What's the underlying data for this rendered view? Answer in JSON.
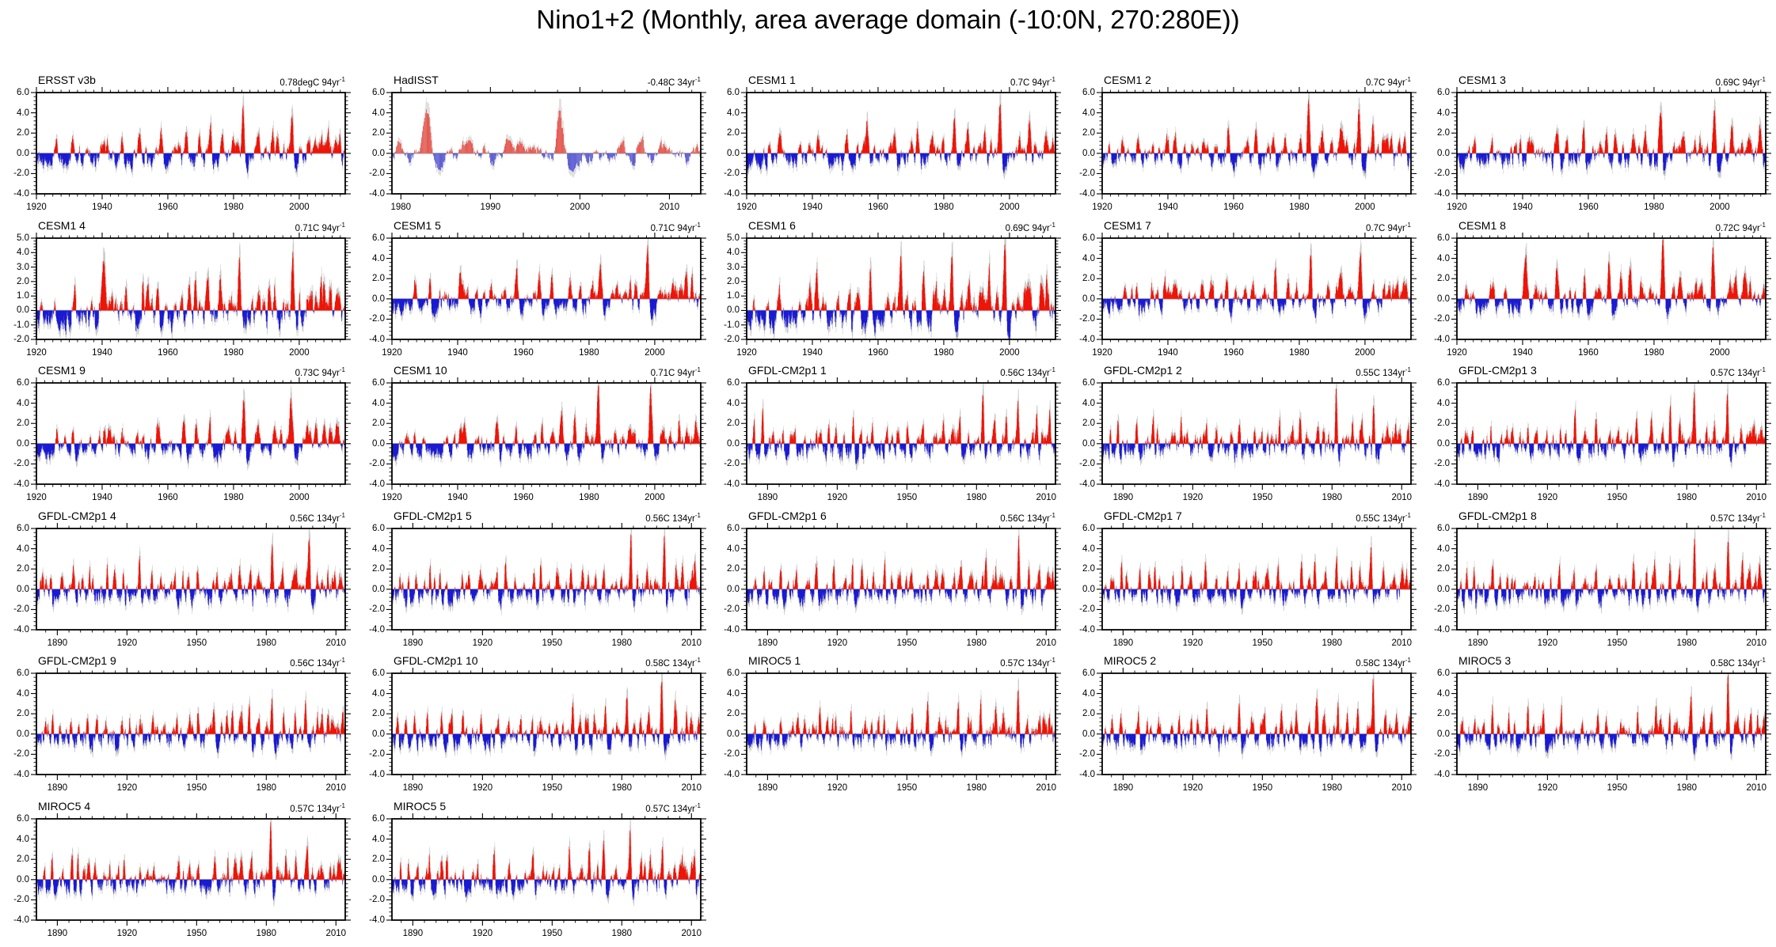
{
  "title": "Nino1+2 (Monthly, area average domain (-10:0N, 270:280E))",
  "colors": {
    "positive": "#ee1407",
    "negative": "#1a1ad2",
    "shadow": "#c9c9c9",
    "zero_line": "#b4b4b4",
    "frame": "#000000",
    "background": "#ffffff"
  },
  "chart_data": {
    "type": "bar",
    "title": "Nino1+2 (Monthly, area average domain (-10:0N, 270:280E))",
    "value_kind": "monthly SST anomaly (degC), red = positive, blue = negative, gray = unsmoothed monthly values",
    "grid": false,
    "x_axis_presets": {
      "years94": {
        "start": 1920,
        "end": 2014,
        "major_ticks": [
          1920,
          1940,
          1960,
          1980,
          2000
        ],
        "major_labels": [
          "1920",
          "1940",
          "1960",
          "1980",
          "2000"
        ],
        "minor_step": 2.5
      },
      "years34": {
        "start": 1979,
        "end": 2013.5,
        "major_ticks": [
          1980,
          1990,
          2000,
          2010
        ],
        "major_labels": [
          "1980",
          "1990",
          "2000",
          "2010"
        ],
        "minor_step": 2.5
      },
      "years134": {
        "start": 1881,
        "end": 2014,
        "major_ticks": [
          1890,
          1920,
          1950,
          1980,
          2010
        ],
        "major_labels": [
          "1890",
          "1920",
          "1950",
          "1980",
          "2010"
        ],
        "minor_step": 5
      }
    },
    "y_axis_presets": {
      "wide": {
        "min": -4,
        "max": 6,
        "major_ticks": [
          6,
          4,
          2,
          0,
          -2,
          -4
        ],
        "major_labels": [
          "6.0",
          "4.0",
          "2.0",
          "0.0",
          "-2.0",
          "-4.0"
        ],
        "minor_step": 0.4
      },
      "narrow": {
        "min": -2,
        "max": 5,
        "major_ticks": [
          5,
          4,
          3,
          2,
          1,
          0,
          -1,
          -2
        ],
        "major_labels": [
          "5.0",
          "4.0",
          "3.0",
          "2.0",
          "1.0",
          "0.0",
          "-1.0",
          "-2.0"
        ],
        "minor_step": 0.2
      }
    },
    "event_peaks": {
      "obs94": [
        [
          1925.9,
          1.3
        ],
        [
          1930.9,
          1.9
        ],
        [
          1935.2,
          0.8
        ],
        [
          1939.9,
          1.5
        ],
        [
          1940.7,
          1.3
        ],
        [
          1941.5,
          1.2
        ],
        [
          1943.3,
          0.9
        ],
        [
          1946.2,
          0.8
        ],
        [
          1951.3,
          2.0
        ],
        [
          1953.3,
          1.2
        ],
        [
          1957.9,
          2.4
        ],
        [
          1963.6,
          1.0
        ],
        [
          1965.7,
          2.2
        ],
        [
          1969.4,
          1.5
        ],
        [
          1972.9,
          2.3
        ],
        [
          1976.7,
          1.6
        ],
        [
          1979.8,
          0.9
        ],
        [
          1982.9,
          4.4
        ],
        [
          1987.6,
          1.8
        ],
        [
          1991.9,
          1.6
        ],
        [
          1993.3,
          1.4
        ],
        [
          1997.8,
          4.2
        ],
        [
          2002.9,
          1.2
        ],
        [
          2004.6,
          1.0
        ],
        [
          2006.9,
          1.5
        ],
        [
          2008.6,
          1.4
        ],
        [
          2012.3,
          1.5
        ]
      ],
      "obs34": [
        [
          1979.7,
          0.7
        ],
        [
          1982.9,
          4.5
        ],
        [
          1987.5,
          1.5
        ],
        [
          1991.9,
          1.6
        ],
        [
          1993.3,
          1.1
        ],
        [
          1994.9,
          0.9
        ],
        [
          1997.8,
          4.3
        ],
        [
          2002.9,
          0.8
        ],
        [
          2004.6,
          0.6
        ],
        [
          2006.8,
          1.3
        ],
        [
          2009.7,
          0.8
        ],
        [
          2012.3,
          1.0
        ]
      ],
      "model134": [
        [
          1884.3,
          1.4
        ],
        [
          1888.2,
          2.0
        ],
        [
          1891.6,
          1.3
        ],
        [
          1896.4,
          2.2
        ],
        [
          1899.8,
          1.2
        ],
        [
          1902.9,
          2.1
        ],
        [
          1905.8,
          1.4
        ],
        [
          1911.9,
          1.8
        ],
        [
          1915.1,
          1.1
        ],
        [
          1918.6,
          1.6
        ],
        [
          1925.9,
          2.2
        ],
        [
          1930.9,
          1.5
        ],
        [
          1935.4,
          1.1
        ],
        [
          1941.1,
          2.0
        ],
        [
          1946.0,
          1.2
        ],
        [
          1951.3,
          1.6
        ],
        [
          1957.9,
          2.4
        ],
        [
          1963.4,
          1.2
        ],
        [
          1965.7,
          2.0
        ],
        [
          1969.3,
          1.4
        ],
        [
          1972.9,
          2.7
        ],
        [
          1976.6,
          1.3
        ],
        [
          1982.9,
          4.1
        ],
        [
          1987.6,
          1.7
        ],
        [
          1991.9,
          1.9
        ],
        [
          1997.8,
          4.2
        ],
        [
          2002.9,
          1.5
        ],
        [
          2006.9,
          1.6
        ],
        [
          2009.8,
          1.2
        ],
        [
          2012.3,
          1.7
        ]
      ]
    },
    "panels": [
      {
        "name": "ERSST v3b",
        "trend_value": "0.78degC",
        "trend_period": "94yr",
        "trend_exp": "-1",
        "x_preset": "years94",
        "y_preset": "wide",
        "events": "obs94",
        "trend_total": 0.78,
        "seed": 101,
        "exact": true
      },
      {
        "name": "HadISST",
        "trend_value": "-0.48C",
        "trend_period": "34yr",
        "trend_exp": "-1",
        "x_preset": "years34",
        "y_preset": "wide",
        "events": "obs34",
        "trend_total": -0.48,
        "seed": 102,
        "exact": true
      },
      {
        "name": "CESM1 1",
        "trend_value": "0.7C",
        "trend_period": "94yr",
        "trend_exp": "-1",
        "x_preset": "years94",
        "y_preset": "wide",
        "events": "obs94",
        "trend_total": 0.7,
        "seed": 103,
        "exact": false
      },
      {
        "name": "CESM1 2",
        "trend_value": "0.7C",
        "trend_period": "94yr",
        "trend_exp": "-1",
        "x_preset": "years94",
        "y_preset": "wide",
        "events": "obs94",
        "trend_total": 0.7,
        "seed": 104,
        "exact": false
      },
      {
        "name": "CESM1 3",
        "trend_value": "0.69C",
        "trend_period": "94yr",
        "trend_exp": "-1",
        "x_preset": "years94",
        "y_preset": "wide",
        "events": "obs94",
        "trend_total": 0.69,
        "seed": 105,
        "exact": false
      },
      {
        "name": "CESM1 4",
        "trend_value": "0.71C",
        "trend_period": "94yr",
        "trend_exp": "-1",
        "x_preset": "years94",
        "y_preset": "narrow",
        "events": "obs94",
        "trend_total": 0.71,
        "seed": 106,
        "exact": false
      },
      {
        "name": "CESM1 5",
        "trend_value": "0.71C",
        "trend_period": "94yr",
        "trend_exp": "-1",
        "x_preset": "years94",
        "y_preset": "wide",
        "events": "obs94",
        "trend_total": 0.71,
        "seed": 107,
        "exact": false
      },
      {
        "name": "CESM1 6",
        "trend_value": "0.69C",
        "trend_period": "94yr",
        "trend_exp": "-1",
        "x_preset": "years94",
        "y_preset": "narrow",
        "events": "obs94",
        "trend_total": 0.69,
        "seed": 108,
        "exact": false
      },
      {
        "name": "CESM1 7",
        "trend_value": "0.7C",
        "trend_period": "94yr",
        "trend_exp": "-1",
        "x_preset": "years94",
        "y_preset": "wide",
        "events": "obs94",
        "trend_total": 0.7,
        "seed": 109,
        "exact": false
      },
      {
        "name": "CESM1 8",
        "trend_value": "0.72C",
        "trend_period": "94yr",
        "trend_exp": "-1",
        "x_preset": "years94",
        "y_preset": "wide",
        "events": "obs94",
        "trend_total": 0.72,
        "seed": 110,
        "exact": false
      },
      {
        "name": "CESM1 9",
        "trend_value": "0.73C",
        "trend_period": "94yr",
        "trend_exp": "-1",
        "x_preset": "years94",
        "y_preset": "wide",
        "events": "obs94",
        "trend_total": 0.73,
        "seed": 111,
        "exact": false
      },
      {
        "name": "CESM1 10",
        "trend_value": "0.71C",
        "trend_period": "94yr",
        "trend_exp": "-1",
        "x_preset": "years94",
        "y_preset": "wide",
        "events": "obs94",
        "trend_total": 0.71,
        "seed": 112,
        "exact": false
      },
      {
        "name": "GFDL-CM2p1 1",
        "trend_value": "0.56C",
        "trend_period": "134yr",
        "trend_exp": "-1",
        "x_preset": "years134",
        "y_preset": "wide",
        "events": "model134",
        "trend_total": 0.56,
        "seed": 113,
        "exact": false
      },
      {
        "name": "GFDL-CM2p1 2",
        "trend_value": "0.55C",
        "trend_period": "134yr",
        "trend_exp": "-1",
        "x_preset": "years134",
        "y_preset": "wide",
        "events": "model134",
        "trend_total": 0.55,
        "seed": 114,
        "exact": false
      },
      {
        "name": "GFDL-CM2p1 3",
        "trend_value": "0.57C",
        "trend_period": "134yr",
        "trend_exp": "-1",
        "x_preset": "years134",
        "y_preset": "wide",
        "events": "model134",
        "trend_total": 0.57,
        "seed": 115,
        "exact": false
      },
      {
        "name": "GFDL-CM2p1 4",
        "trend_value": "0.56C",
        "trend_period": "134yr",
        "trend_exp": "-1",
        "x_preset": "years134",
        "y_preset": "wide",
        "events": "model134",
        "trend_total": 0.56,
        "seed": 116,
        "exact": false
      },
      {
        "name": "GFDL-CM2p1 5",
        "trend_value": "0.56C",
        "trend_period": "134yr",
        "trend_exp": "-1",
        "x_preset": "years134",
        "y_preset": "wide",
        "events": "model134",
        "trend_total": 0.56,
        "seed": 117,
        "exact": false
      },
      {
        "name": "GFDL-CM2p1 6",
        "trend_value": "0.56C",
        "trend_period": "134yr",
        "trend_exp": "-1",
        "x_preset": "years134",
        "y_preset": "wide",
        "events": "model134",
        "trend_total": 0.56,
        "seed": 118,
        "exact": false
      },
      {
        "name": "GFDL-CM2p1 7",
        "trend_value": "0.55C",
        "trend_period": "134yr",
        "trend_exp": "-1",
        "x_preset": "years134",
        "y_preset": "wide",
        "events": "model134",
        "trend_total": 0.55,
        "seed": 119,
        "exact": false
      },
      {
        "name": "GFDL-CM2p1 8",
        "trend_value": "0.57C",
        "trend_period": "134yr",
        "trend_exp": "-1",
        "x_preset": "years134",
        "y_preset": "wide",
        "events": "model134",
        "trend_total": 0.57,
        "seed": 120,
        "exact": false
      },
      {
        "name": "GFDL-CM2p1 9",
        "trend_value": "0.56C",
        "trend_period": "134yr",
        "trend_exp": "-1",
        "x_preset": "years134",
        "y_preset": "wide",
        "events": "model134",
        "trend_total": 0.56,
        "seed": 121,
        "exact": false
      },
      {
        "name": "GFDL-CM2p1 10",
        "trend_value": "0.58C",
        "trend_period": "134yr",
        "trend_exp": "-1",
        "x_preset": "years134",
        "y_preset": "wide",
        "events": "model134",
        "trend_total": 0.58,
        "seed": 122,
        "exact": false
      },
      {
        "name": "MIROC5 1",
        "trend_value": "0.57C",
        "trend_period": "134yr",
        "trend_exp": "-1",
        "x_preset": "years134",
        "y_preset": "wide",
        "events": "model134",
        "trend_total": 0.57,
        "seed": 123,
        "exact": false
      },
      {
        "name": "MIROC5 2",
        "trend_value": "0.58C",
        "trend_period": "134yr",
        "trend_exp": "-1",
        "x_preset": "years134",
        "y_preset": "wide",
        "events": "model134",
        "trend_total": 0.58,
        "seed": 124,
        "exact": false
      },
      {
        "name": "MIROC5 3",
        "trend_value": "0.58C",
        "trend_period": "134yr",
        "trend_exp": "-1",
        "x_preset": "years134",
        "y_preset": "wide",
        "events": "model134",
        "trend_total": 0.58,
        "seed": 125,
        "exact": false
      },
      {
        "name": "MIROC5 4",
        "trend_value": "0.57C",
        "trend_period": "134yr",
        "trend_exp": "-1",
        "x_preset": "years134",
        "y_preset": "wide",
        "events": "model134",
        "trend_total": 0.57,
        "seed": 126,
        "exact": false
      },
      {
        "name": "MIROC5 5",
        "trend_value": "0.57C",
        "trend_period": "134yr",
        "trend_exp": "-1",
        "x_preset": "years134",
        "y_preset": "wide",
        "events": "model134",
        "trend_total": 0.57,
        "seed": 127,
        "exact": false
      }
    ]
  }
}
